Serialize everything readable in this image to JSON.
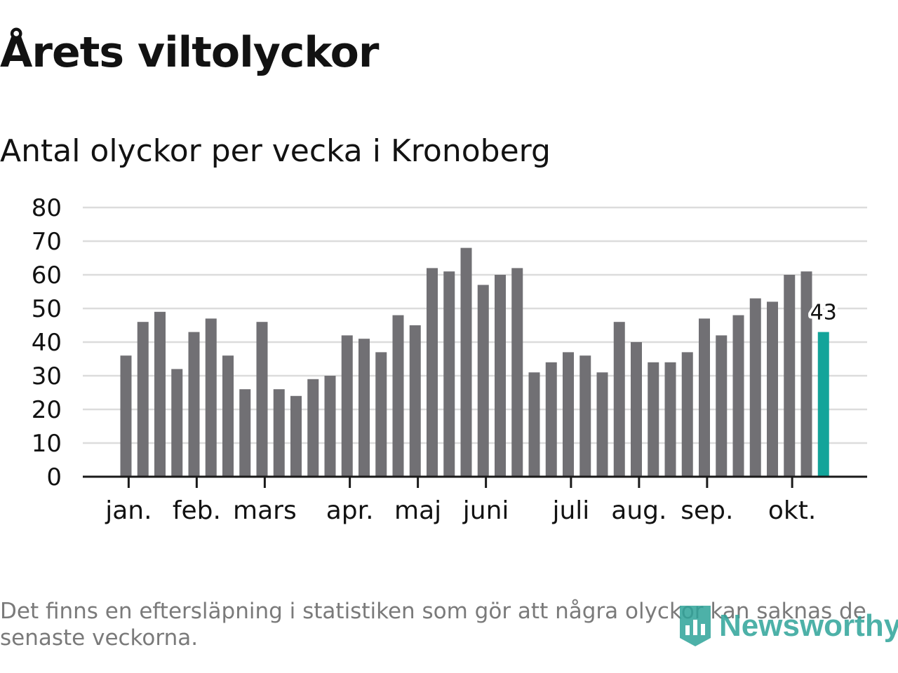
{
  "title": "Årets viltolyckor",
  "subtitle": "Antal olyckor per vecka i Kronoberg",
  "footnote": "Det finns en eftersläpning i statistiken som gör att några olyckor kan saknas de senaste veckorna.",
  "brand": "Newsworthy",
  "colors": {
    "bar": "#717074",
    "highlight": "#13a49a",
    "grid": "#dcdcdc",
    "axis": "#1a1a1a",
    "text": "#121212",
    "footnote": "#7a7a7a",
    "brand": "#2fa49a"
  },
  "chart_data": {
    "type": "bar",
    "title": "Antal olyckor per vecka i Kronoberg",
    "xlabel": "",
    "ylabel": "",
    "ylim": [
      0,
      80
    ],
    "yticks": [
      0,
      10,
      20,
      30,
      40,
      50,
      60,
      70,
      80
    ],
    "grid": true,
    "week_values": [
      36,
      46,
      49,
      32,
      43,
      47,
      36,
      26,
      46,
      26,
      24,
      29,
      30,
      42,
      41,
      37,
      48,
      45,
      62,
      61,
      68,
      57,
      60,
      62,
      31,
      34,
      37,
      36,
      31,
      46,
      40,
      34,
      34,
      37,
      47,
      42,
      48,
      53,
      52,
      60,
      61,
      43
    ],
    "highlight_index": 41,
    "highlight_label": "43",
    "month_ticks": [
      {
        "label": "jan.",
        "position": 0.5
      },
      {
        "label": "feb.",
        "position": 4.5
      },
      {
        "label": "mars",
        "position": 8.5
      },
      {
        "label": "apr.",
        "position": 13.5
      },
      {
        "label": "maj",
        "position": 17.5
      },
      {
        "label": "juni",
        "position": 21.5
      },
      {
        "label": "juli",
        "position": 26.5
      },
      {
        "label": "aug.",
        "position": 30.5
      },
      {
        "label": "sep.",
        "position": 34.5
      },
      {
        "label": "okt.",
        "position": 39.5
      }
    ]
  }
}
